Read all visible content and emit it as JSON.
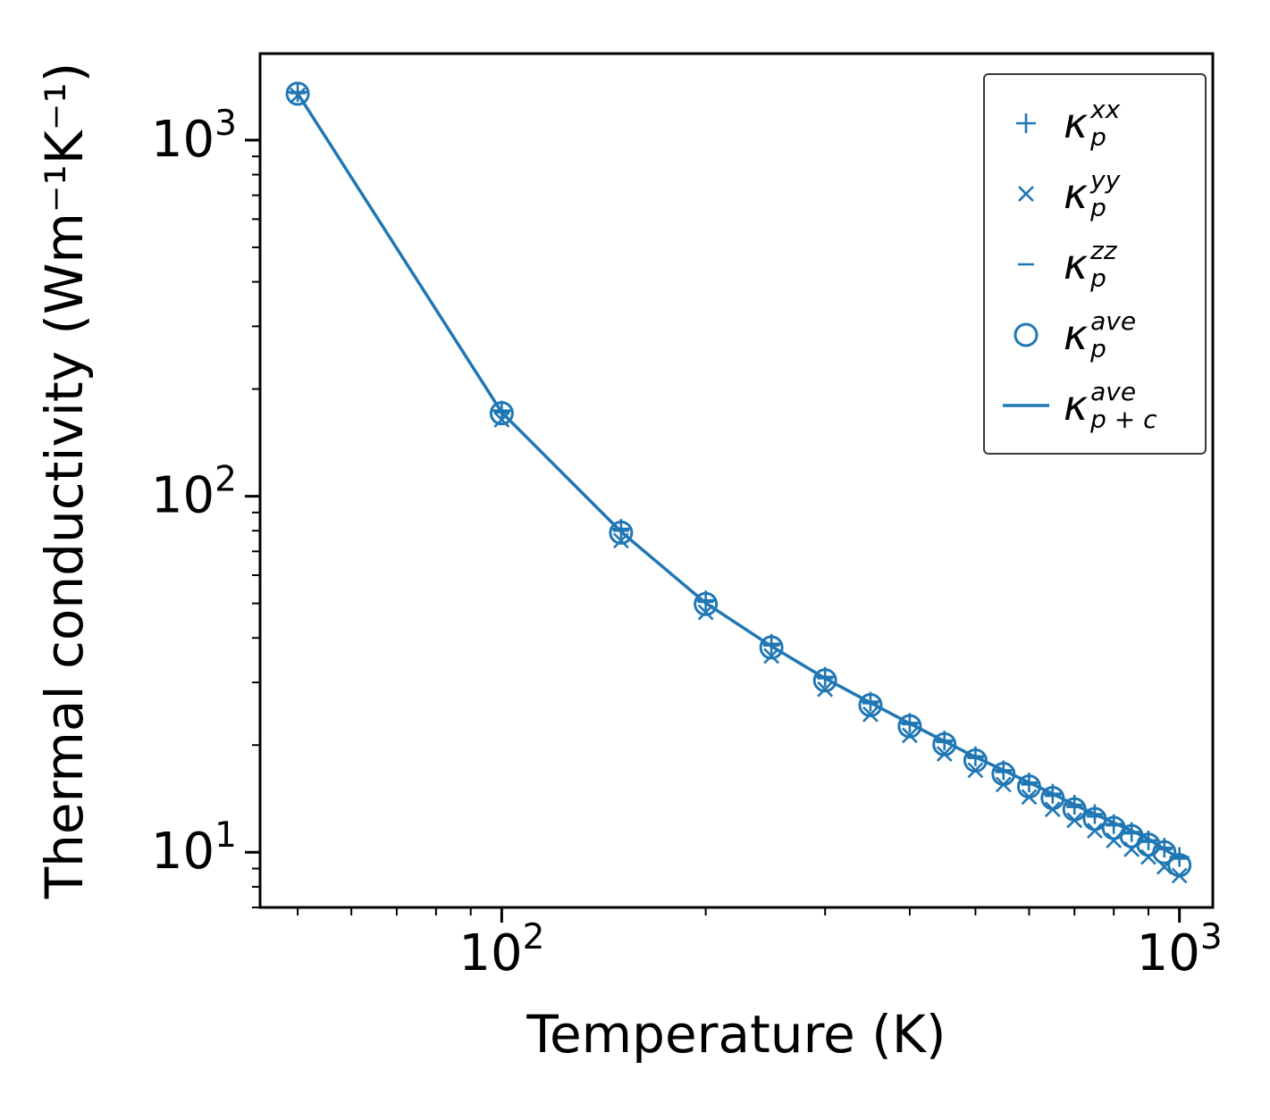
{
  "figure": {
    "background": "#ffffff"
  },
  "chart_data": {
    "type": "scatter",
    "xlabel": "Temperature (K)",
    "ylabel": "Thermal conductivity (Wm⁻¹K⁻¹)",
    "xscale": "log",
    "yscale": "log",
    "xlim": [
      44,
      1120
    ],
    "ylim": [
      7,
      1750
    ],
    "grid": false,
    "accent_color": "#1f77b4",
    "axis_color": "#000000",
    "legend_position": "upper right",
    "x": [
      50,
      100,
      150,
      200,
      250,
      300,
      350,
      400,
      450,
      500,
      550,
      600,
      650,
      700,
      750,
      800,
      850,
      900,
      950,
      1000
    ],
    "series": [
      {
        "name": "kappa_p_xx",
        "marker": "plus",
        "legend": {
          "symbol": "κ",
          "sup": "xx",
          "sub": "p"
        },
        "values": [
          1365,
          174,
          81,
          51.0,
          38.5,
          31.1,
          26.5,
          23.1,
          20.6,
          18.6,
          17.0,
          15.7,
          14.6,
          13.6,
          12.8,
          12.0,
          11.4,
          10.8,
          10.3,
          9.7
        ]
      },
      {
        "name": "kappa_p_yy",
        "marker": "x",
        "legend": {
          "symbol": "κ",
          "sup": "yy",
          "sub": "p"
        },
        "values": [
          1335,
          164,
          75,
          47.2,
          35.6,
          28.7,
          24.4,
          21.3,
          18.9,
          17.0,
          15.5,
          14.3,
          13.2,
          12.3,
          11.5,
          10.8,
          10.2,
          9.7,
          9.1,
          8.6
        ]
      },
      {
        "name": "kappa_p_zz",
        "marker": "hline",
        "legend": {
          "symbol": "κ",
          "sup": "zz",
          "sub": "p"
        },
        "values": [
          1355,
          172,
          80,
          50.5,
          38.1,
          30.8,
          26.2,
          22.9,
          20.4,
          18.4,
          16.8,
          15.5,
          14.4,
          13.4,
          12.6,
          11.9,
          11.3,
          10.7,
          10.2,
          9.6
        ]
      },
      {
        "name": "kappa_p_ave",
        "marker": "circle",
        "legend": {
          "symbol": "κ",
          "sup": "ave",
          "sub": "p"
        },
        "values": [
          1350,
          171,
          79,
          49.8,
          37.6,
          30.4,
          25.9,
          22.6,
          20.1,
          18.1,
          16.6,
          15.3,
          14.2,
          13.2,
          12.4,
          11.7,
          11.1,
          10.5,
          10.0,
          9.2
        ]
      },
      {
        "name": "kappa_p_plus_c_ave",
        "marker": "line",
        "legend": {
          "symbol": "κ",
          "sup": "ave",
          "sub": "p + c"
        },
        "values": [
          1352,
          172,
          79.5,
          50.1,
          37.9,
          30.8,
          26.3,
          23.0,
          20.5,
          18.5,
          17.0,
          15.7,
          14.6,
          13.6,
          12.8,
          12.1,
          11.5,
          10.9,
          10.2,
          9.6
        ]
      }
    ],
    "xticks": {
      "major": [
        {
          "v": 100,
          "base": "10",
          "exp": "2"
        },
        {
          "v": 1000,
          "base": "10",
          "exp": "3"
        }
      ],
      "minor": [
        50,
        60,
        70,
        80,
        90,
        200,
        300,
        400,
        500,
        600,
        700,
        800,
        900
      ]
    },
    "yticks": {
      "major": [
        {
          "v": 10,
          "base": "10",
          "exp": "1"
        },
        {
          "v": 100,
          "base": "10",
          "exp": "2"
        },
        {
          "v": 1000,
          "base": "10",
          "exp": "3"
        }
      ],
      "minor": [
        7,
        8,
        9,
        20,
        30,
        40,
        50,
        60,
        70,
        80,
        90,
        200,
        300,
        400,
        500,
        600,
        700,
        800,
        900
      ]
    }
  }
}
